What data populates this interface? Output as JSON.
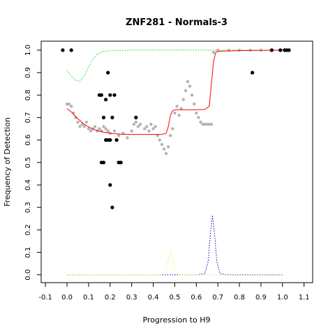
{
  "chart_data": {
    "type": "scatter",
    "title": "ZNF281 - Normals-3",
    "xlabel": "Progression to H9",
    "ylabel": "Frequency of Detection",
    "xlim": [
      -0.12,
      1.14
    ],
    "ylim": [
      -0.035,
      1.04
    ],
    "x_ticks": [
      "-0.1",
      "0.0",
      "0.1",
      "0.2",
      "0.3",
      "0.4",
      "0.5",
      "0.6",
      "0.7",
      "0.8",
      "0.9",
      "1.0",
      "1.1"
    ],
    "y_ticks": [
      "0.0",
      "0.1",
      "0.2",
      "0.3",
      "0.4",
      "0.5",
      "0.6",
      "0.7",
      "0.8",
      "0.9",
      "1.0"
    ],
    "grid": false,
    "legend": "none",
    "colors": {
      "black_points": "#000000",
      "gray_points": "#b4b4b4",
      "red_fit": "#ff0000",
      "green_line": "#00dd00",
      "blue_peak": "#0000cc",
      "yellow_peak": "#eeee44"
    },
    "series": [
      {
        "kind": "scatter",
        "color": "#000000",
        "points": [
          [
            -0.02,
            1.0
          ],
          [
            0.02,
            1.0
          ],
          [
            0.15,
            0.8
          ],
          [
            0.16,
            0.8
          ],
          [
            0.16,
            0.5
          ],
          [
            0.17,
            0.5
          ],
          [
            0.17,
            0.7
          ],
          [
            0.18,
            0.6
          ],
          [
            0.18,
            0.78
          ],
          [
            0.19,
            0.6
          ],
          [
            0.19,
            0.9
          ],
          [
            0.2,
            0.8
          ],
          [
            0.2,
            0.6
          ],
          [
            0.2,
            0.4
          ],
          [
            0.21,
            0.7
          ],
          [
            0.21,
            0.3
          ],
          [
            0.22,
            0.8
          ],
          [
            0.23,
            0.6
          ],
          [
            0.24,
            0.5
          ],
          [
            0.25,
            0.5
          ],
          [
            0.32,
            0.7
          ],
          [
            0.86,
            0.9
          ],
          [
            0.95,
            1.0
          ],
          [
            0.99,
            1.0
          ],
          [
            1.01,
            1.0
          ],
          [
            1.02,
            1.0
          ],
          [
            1.03,
            1.0
          ]
        ]
      },
      {
        "kind": "scatter-gray",
        "color": "#b4b4b4",
        "points": [
          [
            0.0,
            0.76
          ],
          [
            0.01,
            0.76
          ],
          [
            0.02,
            0.75
          ],
          [
            0.03,
            0.72
          ],
          [
            0.04,
            0.7
          ],
          [
            0.05,
            0.68
          ],
          [
            0.06,
            0.66
          ],
          [
            0.07,
            0.67
          ],
          [
            0.08,
            0.66
          ],
          [
            0.09,
            0.68
          ],
          [
            0.1,
            0.65
          ],
          [
            0.11,
            0.64
          ],
          [
            0.12,
            0.65
          ],
          [
            0.13,
            0.66
          ],
          [
            0.14,
            0.64
          ],
          [
            0.15,
            0.65
          ],
          [
            0.16,
            0.64
          ],
          [
            0.17,
            0.66
          ],
          [
            0.18,
            0.65
          ],
          [
            0.19,
            0.64
          ],
          [
            0.2,
            0.63
          ],
          [
            0.22,
            0.64
          ],
          [
            0.24,
            0.62
          ],
          [
            0.26,
            0.63
          ],
          [
            0.28,
            0.61
          ],
          [
            0.3,
            0.64
          ],
          [
            0.31,
            0.67
          ],
          [
            0.32,
            0.68
          ],
          [
            0.33,
            0.66
          ],
          [
            0.34,
            0.67
          ],
          [
            0.36,
            0.65
          ],
          [
            0.37,
            0.66
          ],
          [
            0.38,
            0.64
          ],
          [
            0.39,
            0.67
          ],
          [
            0.4,
            0.65
          ],
          [
            0.41,
            0.66
          ],
          [
            0.42,
            0.62
          ],
          [
            0.43,
            0.6
          ],
          [
            0.44,
            0.58
          ],
          [
            0.45,
            0.56
          ],
          [
            0.46,
            0.54
          ],
          [
            0.47,
            0.57
          ],
          [
            0.48,
            0.62
          ],
          [
            0.49,
            0.65
          ],
          [
            0.5,
            0.72
          ],
          [
            0.51,
            0.75
          ],
          [
            0.52,
            0.71
          ],
          [
            0.53,
            0.74
          ],
          [
            0.54,
            0.78
          ],
          [
            0.55,
            0.82
          ],
          [
            0.56,
            0.86
          ],
          [
            0.57,
            0.84
          ],
          [
            0.58,
            0.8
          ],
          [
            0.59,
            0.76
          ],
          [
            0.6,
            0.72
          ],
          [
            0.61,
            0.7
          ],
          [
            0.62,
            0.68
          ],
          [
            0.63,
            0.67
          ],
          [
            0.64,
            0.67
          ],
          [
            0.65,
            0.67
          ],
          [
            0.66,
            0.67
          ],
          [
            0.67,
            0.67
          ],
          [
            0.68,
            0.99
          ],
          [
            0.7,
            1.0
          ],
          [
            0.75,
            1.0
          ],
          [
            0.8,
            1.0
          ],
          [
            0.85,
            1.0
          ],
          [
            0.9,
            1.0
          ],
          [
            0.95,
            1.0
          ]
        ]
      },
      {
        "kind": "line",
        "color": "#ff0000",
        "style": "solid",
        "points": [
          [
            0.0,
            0.74
          ],
          [
            0.02,
            0.725
          ],
          [
            0.05,
            0.695
          ],
          [
            0.08,
            0.67
          ],
          [
            0.11,
            0.653
          ],
          [
            0.14,
            0.642
          ],
          [
            0.17,
            0.635
          ],
          [
            0.2,
            0.63
          ],
          [
            0.25,
            0.626
          ],
          [
            0.3,
            0.625
          ],
          [
            0.35,
            0.625
          ],
          [
            0.4,
            0.625
          ],
          [
            0.44,
            0.625
          ],
          [
            0.46,
            0.63
          ],
          [
            0.47,
            0.66
          ],
          [
            0.48,
            0.71
          ],
          [
            0.49,
            0.73
          ],
          [
            0.5,
            0.735
          ],
          [
            0.55,
            0.735
          ],
          [
            0.6,
            0.735
          ],
          [
            0.64,
            0.736
          ],
          [
            0.66,
            0.75
          ],
          [
            0.67,
            0.85
          ],
          [
            0.68,
            0.95
          ],
          [
            0.69,
            0.99
          ],
          [
            0.7,
            0.995
          ],
          [
            0.8,
            0.998
          ],
          [
            0.9,
            0.999
          ],
          [
            1.03,
            1.0
          ]
        ]
      },
      {
        "kind": "line",
        "color": "#00dd00",
        "style": "dotted",
        "points": [
          [
            0.0,
            0.91
          ],
          [
            0.02,
            0.885
          ],
          [
            0.04,
            0.865
          ],
          [
            0.06,
            0.862
          ],
          [
            0.08,
            0.885
          ],
          [
            0.1,
            0.925
          ],
          [
            0.12,
            0.96
          ],
          [
            0.14,
            0.982
          ],
          [
            0.16,
            0.993
          ],
          [
            0.2,
            0.998
          ],
          [
            0.3,
            1.0
          ],
          [
            0.5,
            1.0
          ],
          [
            0.7,
            1.0
          ],
          [
            0.9,
            1.0
          ],
          [
            1.0,
            1.0
          ]
        ]
      },
      {
        "kind": "line",
        "color": "#0000cc",
        "style": "dotted",
        "points": [
          [
            0.0,
            0.0
          ],
          [
            0.6,
            0.0
          ],
          [
            0.64,
            0.005
          ],
          [
            0.655,
            0.06
          ],
          [
            0.665,
            0.18
          ],
          [
            0.675,
            0.265
          ],
          [
            0.685,
            0.18
          ],
          [
            0.695,
            0.06
          ],
          [
            0.71,
            0.005
          ],
          [
            0.74,
            0.0
          ],
          [
            1.0,
            0.0
          ]
        ]
      },
      {
        "kind": "line",
        "color": "#eeee44",
        "style": "dotted",
        "points": [
          [
            0.0,
            0.0
          ],
          [
            0.44,
            0.0
          ],
          [
            0.46,
            0.02
          ],
          [
            0.47,
            0.07
          ],
          [
            0.48,
            0.11
          ],
          [
            0.49,
            0.07
          ],
          [
            0.5,
            0.02
          ],
          [
            0.52,
            0.0
          ],
          [
            1.0,
            0.0
          ]
        ]
      }
    ]
  }
}
